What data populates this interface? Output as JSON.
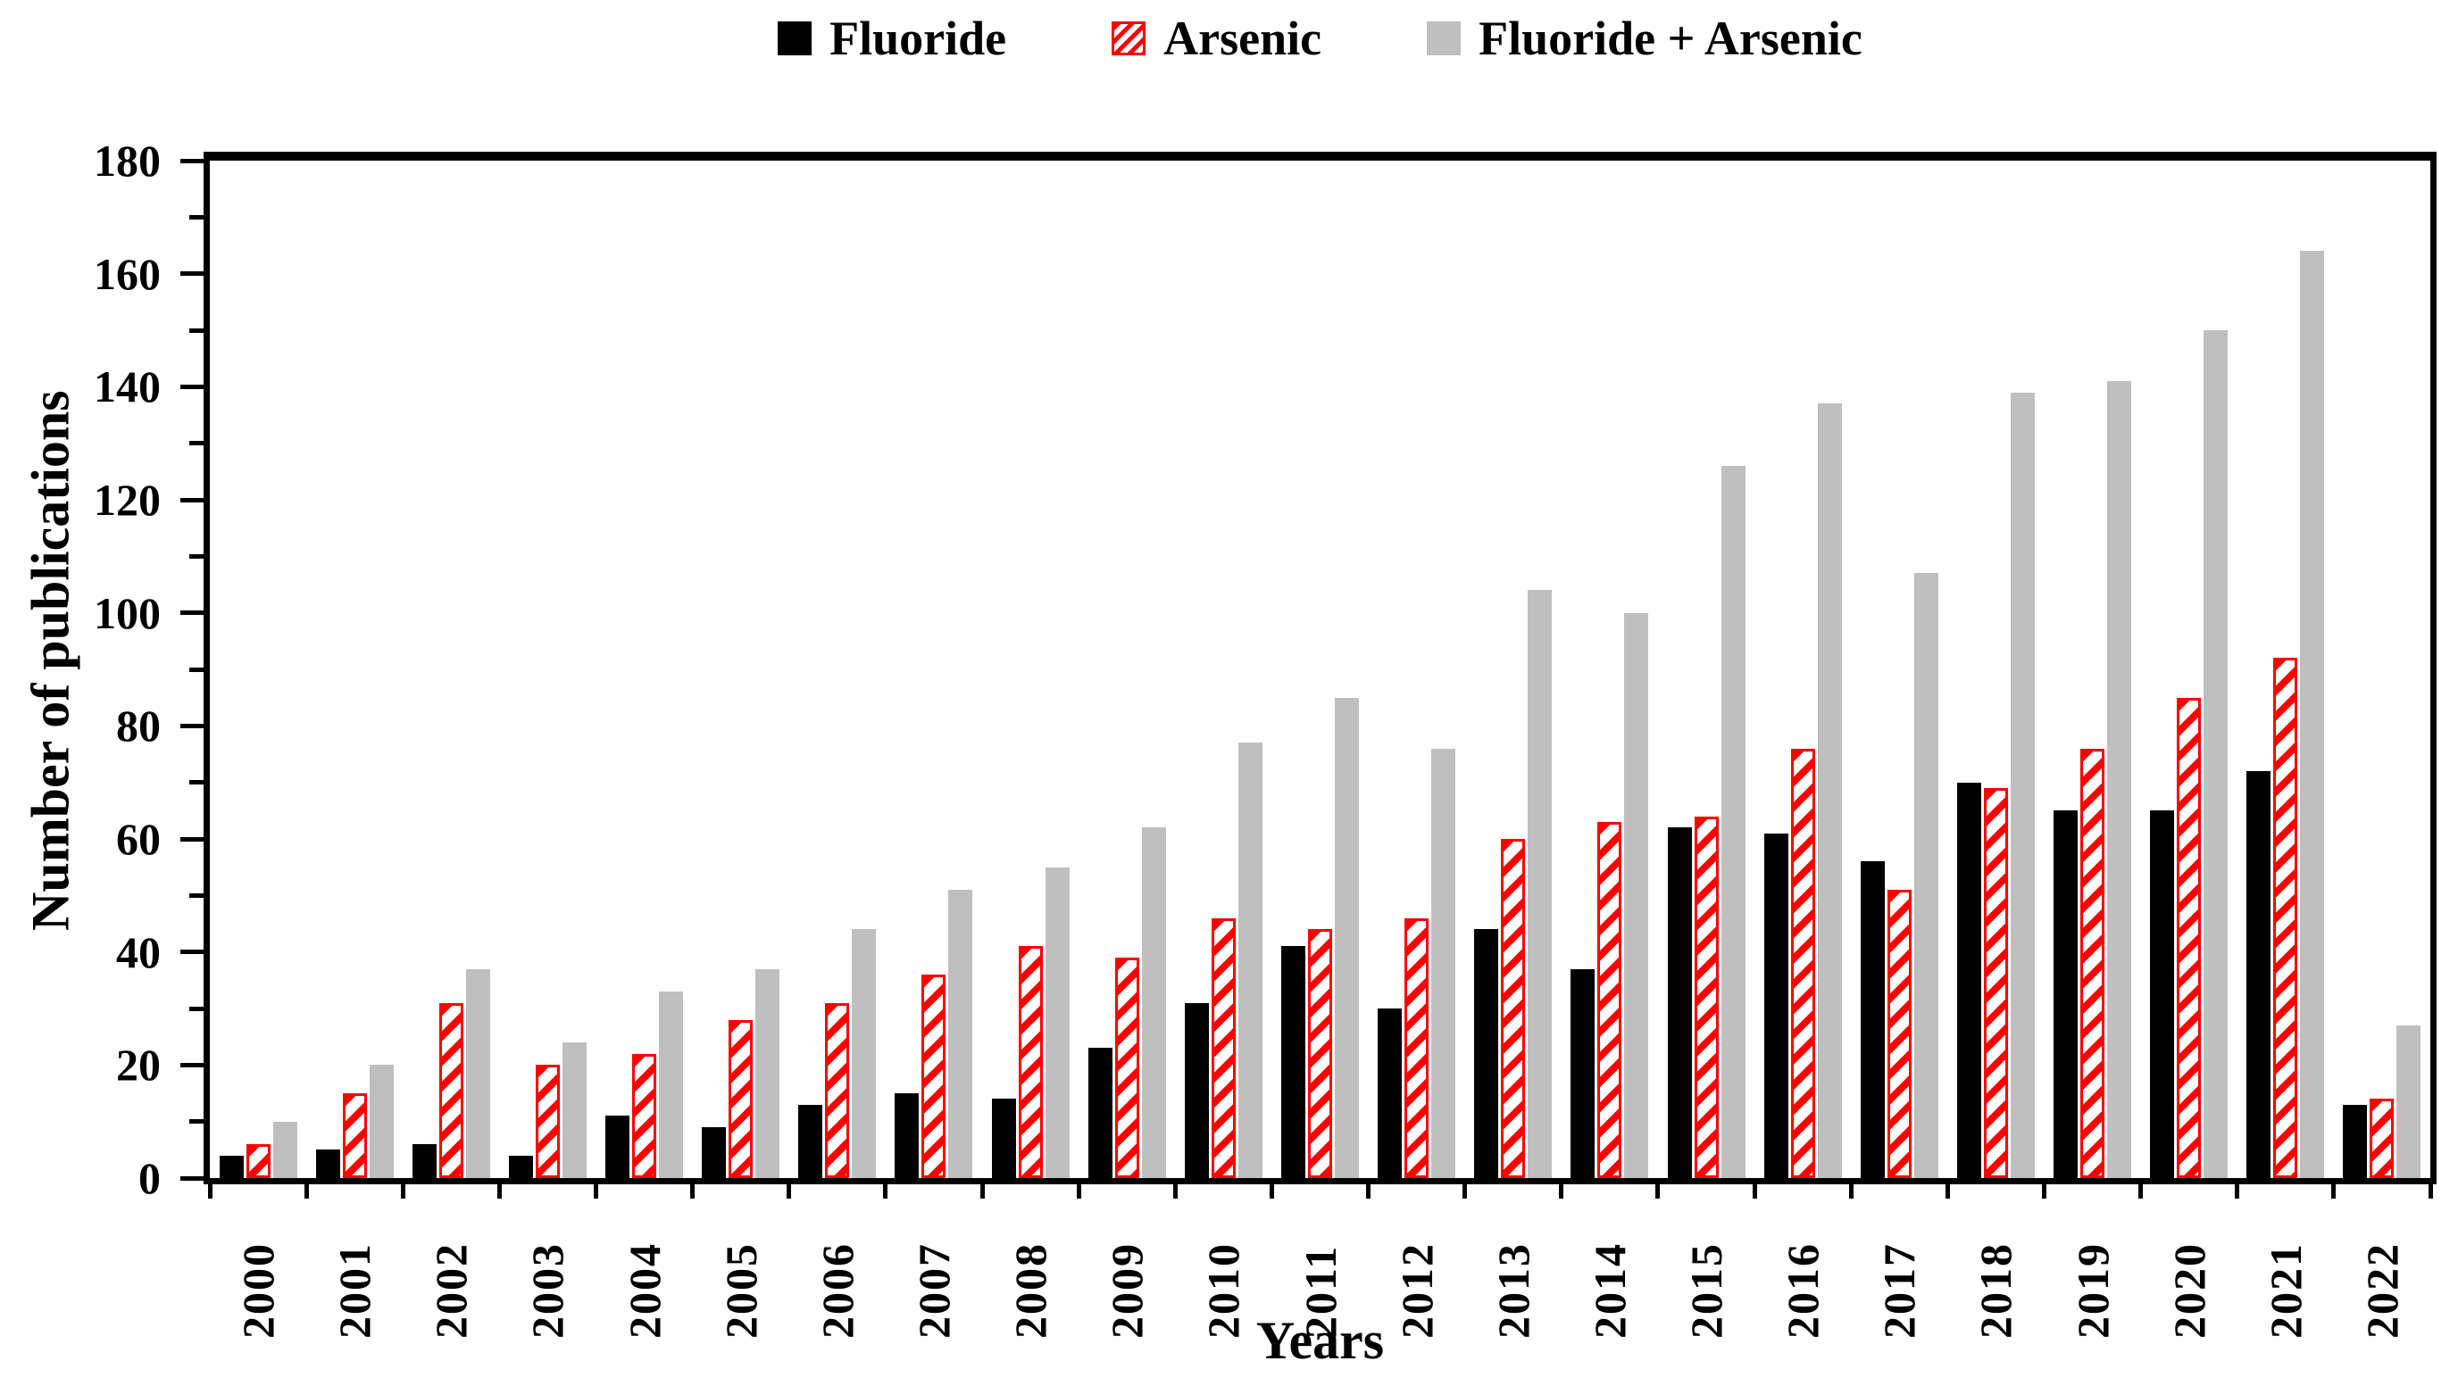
{
  "chart_data": {
    "type": "bar",
    "title": "",
    "categories": [
      "2000",
      "2001",
      "2002",
      "2003",
      "2004",
      "2005",
      "2006",
      "2007",
      "2008",
      "2009",
      "2010",
      "2011",
      "2012",
      "2013",
      "2014",
      "2015",
      "2016",
      "2017",
      "2018",
      "2019",
      "2020",
      "2021",
      "2022"
    ],
    "series": [
      {
        "name": "Fluoride",
        "pattern": "solid",
        "color": "#000000",
        "values": [
          4,
          5,
          6,
          4,
          11,
          9,
          13,
          15,
          14,
          23,
          31,
          41,
          30,
          44,
          37,
          62,
          61,
          56,
          70,
          65,
          65,
          72,
          13
        ]
      },
      {
        "name": "Arsenic",
        "pattern": "diagonal-hatch",
        "color": "#fe0000",
        "values": [
          6,
          15,
          31,
          20,
          22,
          28,
          31,
          36,
          41,
          39,
          46,
          44,
          46,
          60,
          63,
          64,
          76,
          51,
          69,
          76,
          85,
          92,
          14
        ]
      },
      {
        "name": "Fluoride + Arsenic",
        "pattern": "solid",
        "color": "#bfbfbf",
        "values": [
          10,
          20,
          37,
          24,
          33,
          37,
          44,
          51,
          55,
          62,
          77,
          85,
          76,
          104,
          100,
          126,
          137,
          107,
          139,
          141,
          150,
          164,
          27
        ]
      }
    ],
    "xlabel": "Years",
    "ylabel": "Number of publications",
    "ylim": [
      0,
      180
    ],
    "y_major_ticks": [
      0,
      20,
      40,
      60,
      80,
      100,
      120,
      140,
      160,
      180
    ],
    "y_minor_ticks": [
      10,
      30,
      50,
      70,
      90,
      110,
      130,
      150,
      170
    ],
    "grid": "off",
    "legend_position": "top-center"
  },
  "colors": {
    "fluoride": "#000000",
    "arsenic": "#fe0000",
    "fluoride_arsenic": "#bfbfbf",
    "axis": "#000000",
    "background": "#ffffff"
  }
}
